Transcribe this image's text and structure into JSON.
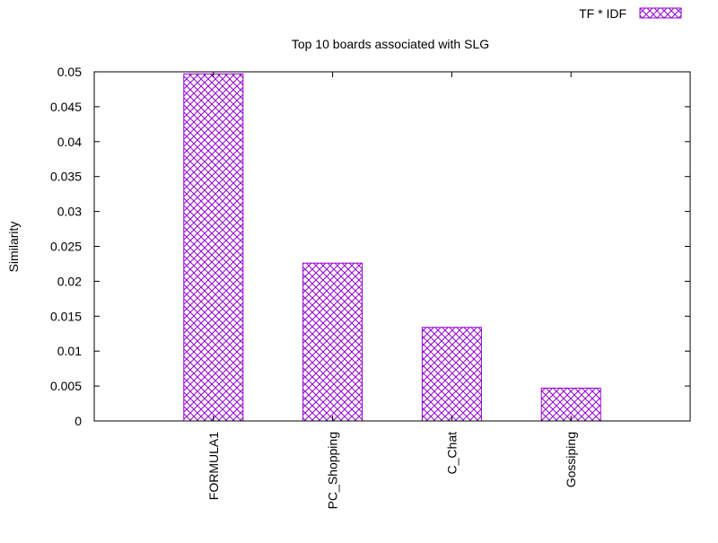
{
  "chart_data": {
    "type": "bar",
    "title": "Top 10 boards associated with SLG",
    "xlabel": "",
    "ylabel": "Similarity",
    "categories": [
      "FORMULA1",
      "PC_Shopping",
      "C_Chat",
      "Gossiping"
    ],
    "series": [
      {
        "name": "TF * IDF",
        "values": [
          0.0497,
          0.0226,
          0.0134,
          0.0047
        ]
      }
    ],
    "ylim": [
      0,
      0.05
    ],
    "yticks": [
      "0",
      "0.005",
      "0.01",
      "0.015",
      "0.02",
      "0.025",
      "0.03",
      "0.035",
      "0.04",
      "0.045",
      "0.05"
    ],
    "grid": false,
    "legend_position": "top-right",
    "colors": {
      "bar": "#9400d3",
      "axis": "#000000"
    }
  }
}
